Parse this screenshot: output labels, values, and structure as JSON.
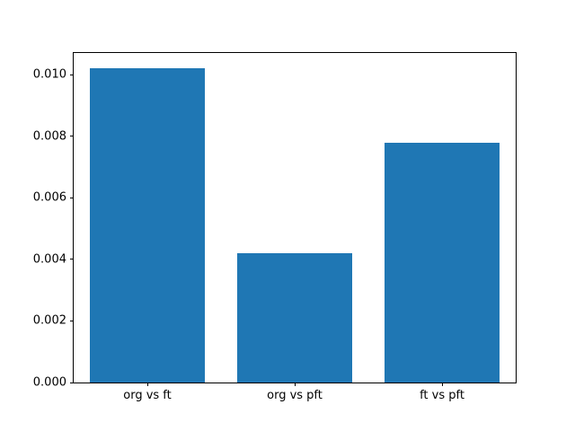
{
  "chart_data": {
    "type": "bar",
    "categories": [
      "org vs ft",
      "org vs pft",
      "ft vs pft"
    ],
    "values": [
      0.0102,
      0.0042,
      0.0078
    ],
    "title": "",
    "xlabel": "",
    "ylabel": "",
    "ylim": [
      0,
      0.01071
    ],
    "ytick_values": [
      0,
      0.002,
      0.004,
      0.006,
      0.008,
      0.01
    ],
    "ytick_labels": [
      "0.000",
      "0.002",
      "0.004",
      "0.006",
      "0.008",
      "0.010"
    ],
    "grid": false,
    "legend_position": "none",
    "bar_color": "#1f77b4",
    "axis_color": "#000000",
    "background_color": "#ffffff"
  }
}
